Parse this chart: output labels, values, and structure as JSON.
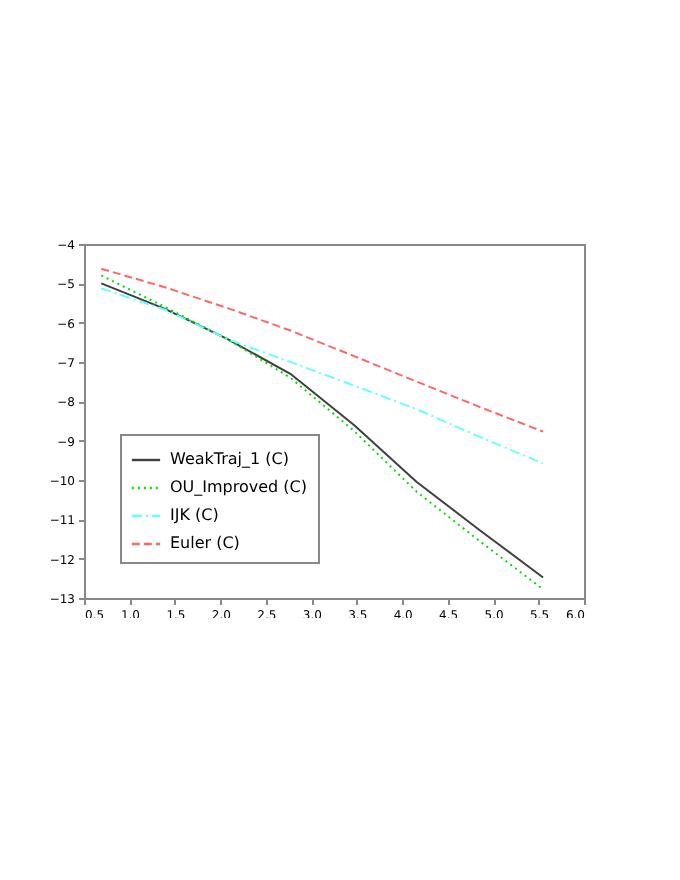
{
  "chart_data": {
    "type": "line",
    "x": [
      0.69,
      1.39,
      2.08,
      2.77,
      3.47,
      4.16,
      4.85,
      5.55
    ],
    "series": [
      {
        "name": "WeakTraj_1 (C)",
        "color": "#404040",
        "line_style": "solid",
        "values": [
          -5.0,
          -5.65,
          -6.42,
          -7.3,
          -8.6,
          -10.05,
          -11.27,
          -12.48
        ]
      },
      {
        "name": "OU_Improved (C)",
        "color": "#00e000",
        "line_style": "dotted",
        "values": [
          -4.8,
          -5.6,
          -6.42,
          -7.4,
          -8.75,
          -10.3,
          -11.55,
          -12.78
        ]
      },
      {
        "name": "IJK (C)",
        "color": "#66ffff",
        "line_style": "dashdot",
        "values": [
          -5.13,
          -5.67,
          -6.42,
          -7.0,
          -7.6,
          -8.2,
          -8.9,
          -9.58
        ]
      },
      {
        "name": "Euler (C)",
        "color": "#ff6666",
        "line_style": "dashed",
        "values": [
          -4.63,
          -5.1,
          -5.63,
          -6.2,
          -6.85,
          -7.5,
          -8.14,
          -8.77
        ]
      }
    ],
    "xlim": [
      0.5,
      6.0
    ],
    "ylim": [
      -13,
      -4
    ],
    "xticks": [
      {
        "value": 0.5,
        "label": "0.5"
      },
      {
        "value": 1,
        "label": "1.0"
      },
      {
        "value": 1.5,
        "label": "1.5"
      },
      {
        "value": 2,
        "label": "2.0"
      },
      {
        "value": 2.5,
        "label": "2.5"
      },
      {
        "value": 3,
        "label": "3.0"
      },
      {
        "value": 3.5,
        "label": "3.5"
      },
      {
        "value": 4,
        "label": "4.0"
      },
      {
        "value": 4.5,
        "label": "4.5"
      },
      {
        "value": 5,
        "label": "5.0"
      },
      {
        "value": 5.5,
        "label": "5.5"
      },
      {
        "value": 6,
        "label": "6.0"
      }
    ],
    "yticks": [
      -13,
      -12,
      -11,
      -10,
      -9,
      -8,
      -7,
      -6,
      -5,
      -4
    ],
    "legend": "bottom left",
    "grid": false
  }
}
